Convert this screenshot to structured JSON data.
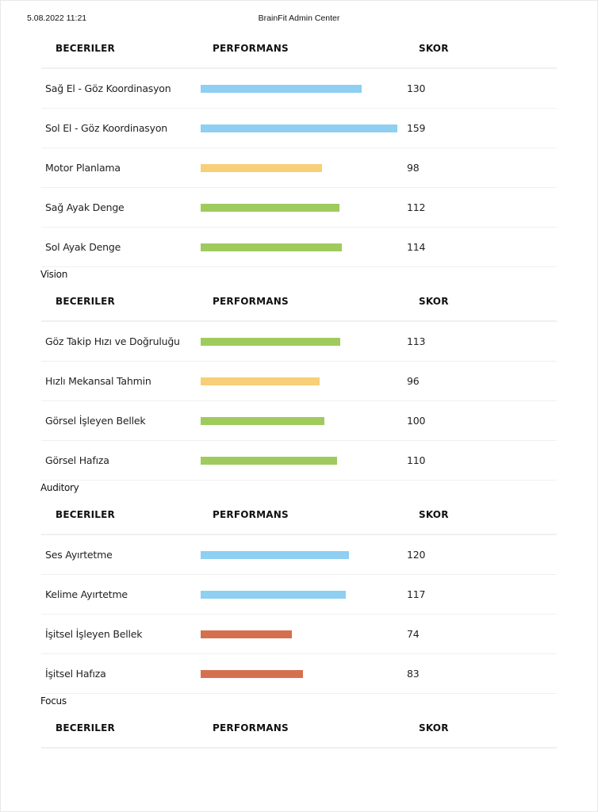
{
  "header": {
    "datetime": "5.08.2022 11:21",
    "title": "BrainFit Admin Center"
  },
  "columns": {
    "skills": "BECERILER",
    "performance": "PERFORMANS",
    "score": "SKOR"
  },
  "colors": {
    "blue": "#8ecff2",
    "yellow": "#f7cf78",
    "green": "#9fcb5e",
    "red": "#d5704f"
  },
  "sections": [
    {
      "label": "",
      "rows": [
        {
          "name": "Sağ El - Göz Koordinasyon",
          "score": 130,
          "color": "blue"
        },
        {
          "name": "Sol El - Göz Koordinasyon",
          "score": 159,
          "color": "blue"
        },
        {
          "name": "Motor Planlama",
          "score": 98,
          "color": "yellow"
        },
        {
          "name": "Sağ Ayak Denge",
          "score": 112,
          "color": "green"
        },
        {
          "name": "Sol Ayak Denge",
          "score": 114,
          "color": "green"
        }
      ]
    },
    {
      "label": "Vision",
      "rows": [
        {
          "name": "Göz Takip Hızı ve Doğruluğu",
          "score": 113,
          "color": "green"
        },
        {
          "name": "Hızlı Mekansal Tahmin",
          "score": 96,
          "color": "yellow"
        },
        {
          "name": "Görsel İşleyen Bellek",
          "score": 100,
          "color": "green"
        },
        {
          "name": "Görsel Hafıza",
          "score": 110,
          "color": "green"
        }
      ]
    },
    {
      "label": "Auditory",
      "rows": [
        {
          "name": "Ses Ayırtetme",
          "score": 120,
          "color": "blue"
        },
        {
          "name": "Kelime Ayırtetme",
          "score": 117,
          "color": "blue"
        },
        {
          "name": "İşitsel İşleyen Bellek",
          "score": 74,
          "color": "red"
        },
        {
          "name": "İşitsel Hafıza",
          "score": 83,
          "color": "red"
        }
      ]
    },
    {
      "label": "Focus",
      "rows": []
    }
  ]
}
